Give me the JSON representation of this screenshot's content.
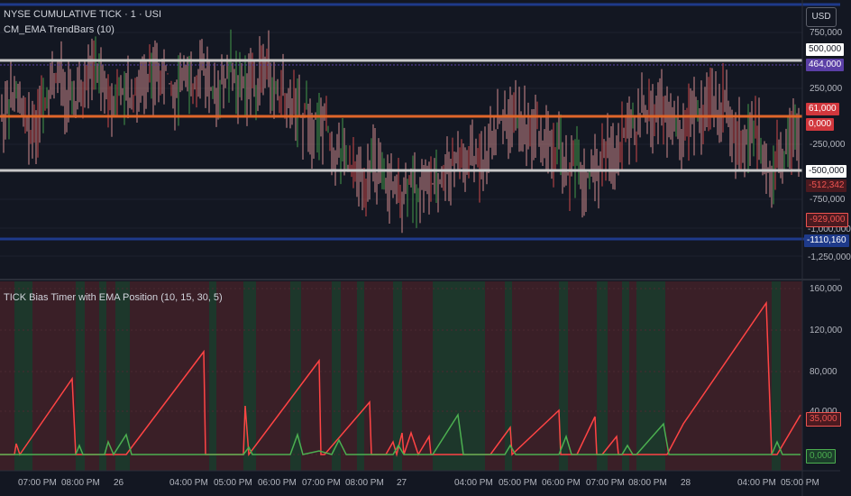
{
  "header": {
    "symbol_title": "NYSE CUMULATIVE TICK · 1 · USI",
    "indicator_title": "CM_EMA TrendBars (10)",
    "currency": "USD"
  },
  "lower_pane": {
    "title": "TICK Bias Timer with EMA Position (10, 15, 30, 5)"
  },
  "price_axis": {
    "ticks": [
      "750,000",
      "250,000",
      "-250,000",
      "-750,000",
      "-1,000,000",
      "-1,250,000"
    ]
  },
  "price_tags": [
    {
      "label": "500,000",
      "bg": "#ffffff",
      "fg": "#131722"
    },
    {
      "label": "464,000",
      "bg": "#5b3fa6",
      "fg": "#ffffff"
    },
    {
      "label": "61,000",
      "bg": "#d1373d",
      "fg": "#ffffff"
    },
    {
      "label": "0,000",
      "bg": "#d1373d",
      "fg": "#ffffff"
    },
    {
      "label": "-500,000",
      "bg": "#ffffff",
      "fg": "#131722"
    },
    {
      "label": "-512,342",
      "bg": "#4a1a20",
      "fg": "#ef5350"
    },
    {
      "label": "-929,000",
      "bg": "#4a1a20",
      "fg": "#ef5350"
    },
    {
      "label": "-1110,160",
      "bg": "#1e3a8a",
      "fg": "#ffffff"
    }
  ],
  "lower_axis": {
    "ticks": [
      "160,000",
      "120,000",
      "80,000",
      "40,000"
    ]
  },
  "lower_tags": [
    {
      "label": "35,000",
      "bg": "#4a1a20",
      "fg": "#ef5350"
    },
    {
      "label": "0,000",
      "bg": "#1b3d2a",
      "fg": "#4caf50"
    }
  ],
  "time_axis": {
    "labels": [
      "07:00 PM",
      "08:00 PM",
      "26",
      "04:00 PM",
      "05:00 PM",
      "06:00 PM",
      "07:00 PM",
      "08:00 PM",
      "27",
      "04:00 PM",
      "05:00 PM",
      "06:00 PM",
      "07:00 PM",
      "08:00 PM",
      "28",
      "04:00 PM",
      "05:00 PM"
    ]
  },
  "colors": {
    "background": "#131722",
    "white_line": "#c8c8c8",
    "blue_line": "#1e3a8a",
    "orange_line": "#e0662a",
    "bull": "#4caf50",
    "bear": "#ef5350",
    "timer_red": "#ff4444",
    "timer_green": "#4caf50"
  }
}
